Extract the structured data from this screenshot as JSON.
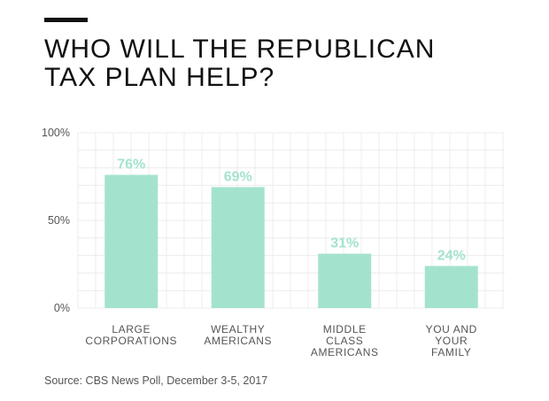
{
  "title_lines": [
    "WHO WILL THE REPUBLICAN",
    "TAX PLAN HELP?"
  ],
  "source": "Source: CBS News Poll, December 3-5, 2017",
  "colors": {
    "bar": "#a3e3cd",
    "label": "#a3e3cd",
    "grid": "#ececec",
    "accent": "#111111"
  },
  "chart_data": {
    "type": "bar",
    "title": "WHO WILL THE REPUBLICAN TAX PLAN HELP?",
    "categories": [
      [
        "LARGE",
        "CORPORATIONS"
      ],
      [
        "WEALTHY",
        "AMERICANS"
      ],
      [
        "MIDDLE",
        "CLASS",
        "AMERICANS"
      ],
      [
        "YOU AND",
        "YOUR",
        "FAMILY"
      ]
    ],
    "values": [
      76,
      69,
      31,
      24
    ],
    "data_labels": [
      "76%",
      "69%",
      "31%",
      "24%"
    ],
    "yticks": [
      0,
      50,
      100
    ],
    "ytick_labels": [
      "0%",
      "50%",
      "100%"
    ],
    "ylim": [
      0,
      100
    ],
    "xlabel": "",
    "ylabel": "",
    "grid": true
  }
}
